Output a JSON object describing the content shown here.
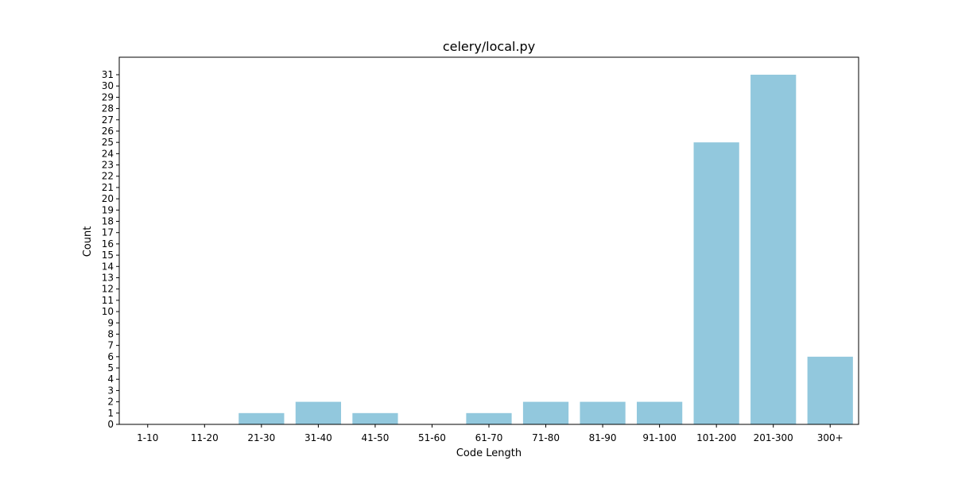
{
  "chart_data": {
    "type": "bar",
    "title": "celery/local.py",
    "xlabel": "Code Length",
    "ylabel": "Count",
    "categories": [
      "1-10",
      "11-20",
      "21-30",
      "31-40",
      "41-50",
      "51-60",
      "61-70",
      "71-80",
      "81-90",
      "91-100",
      "101-200",
      "201-300",
      "300+"
    ],
    "values": [
      0,
      0,
      1,
      2,
      1,
      0,
      1,
      2,
      2,
      2,
      25,
      31,
      6
    ],
    "ylim": [
      0,
      32.55
    ],
    "yticks": [
      0,
      1,
      2,
      3,
      4,
      5,
      6,
      7,
      8,
      9,
      10,
      11,
      12,
      13,
      14,
      15,
      16,
      17,
      18,
      19,
      20,
      21,
      22,
      23,
      24,
      25,
      26,
      27,
      28,
      29,
      30,
      31
    ],
    "bar_color": "#92c8dd",
    "grid": false,
    "legend": "none"
  }
}
